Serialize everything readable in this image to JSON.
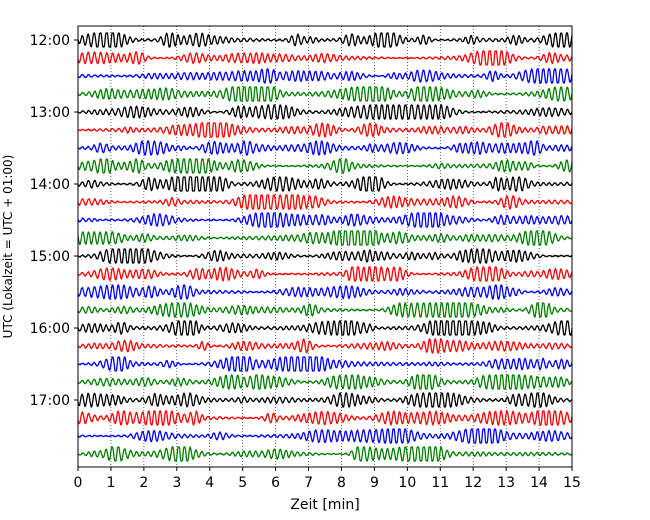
{
  "chart_data": {
    "type": "line",
    "title": "",
    "xlabel": "Zeit  [min]",
    "ylabel": "UTC (Lokalzeit = UTC + 01:00)",
    "xlim": [
      0,
      15
    ],
    "x_ticks": [
      "0",
      "1",
      "2",
      "3",
      "4",
      "5",
      "6",
      "7",
      "8",
      "9",
      "10",
      "11",
      "12",
      "13",
      "14",
      "15"
    ],
    "y_ticks": [
      "12:00",
      "13:00",
      "14:00",
      "15:00",
      "16:00",
      "17:00"
    ],
    "grid": "vertical dotted",
    "trace_interval_min": 15,
    "trace_count": 24,
    "trace_colors": [
      "#000000",
      "#ff0000",
      "#0000ff",
      "#007f00"
    ]
  }
}
